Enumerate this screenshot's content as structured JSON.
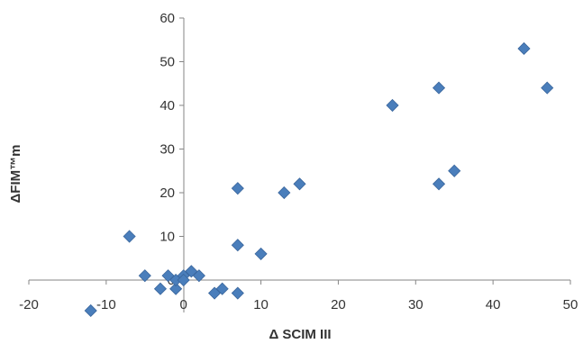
{
  "chart_data": {
    "type": "scatter",
    "title": "",
    "xlabel": "Δ SCIM III",
    "ylabel": "ΔFIM™m",
    "xlim": [
      -20,
      50
    ],
    "ylim": [
      -7,
      60
    ],
    "x_ticks": [
      "-20",
      "-10",
      "0",
      "10",
      "20",
      "30",
      "40",
      "50"
    ],
    "y_ticks": [
      "0",
      "10",
      "20",
      "30",
      "40",
      "50",
      "60"
    ],
    "grid": false,
    "legend": "none",
    "marker": "diamond",
    "marker_color": "#4a7ebb",
    "points": [
      {
        "x": -12,
        "y": -7
      },
      {
        "x": -7,
        "y": 10
      },
      {
        "x": -5,
        "y": 1
      },
      {
        "x": -3,
        "y": -2
      },
      {
        "x": -2,
        "y": 1
      },
      {
        "x": -1,
        "y": -2
      },
      {
        "x": -1,
        "y": 0
      },
      {
        "x": 0,
        "y": 1
      },
      {
        "x": 0,
        "y": 0
      },
      {
        "x": 1,
        "y": 2
      },
      {
        "x": 2,
        "y": 1
      },
      {
        "x": 4,
        "y": -3
      },
      {
        "x": 5,
        "y": -2
      },
      {
        "x": 7,
        "y": -3
      },
      {
        "x": 7,
        "y": 8
      },
      {
        "x": 7,
        "y": 21
      },
      {
        "x": 10,
        "y": 6
      },
      {
        "x": 13,
        "y": 20
      },
      {
        "x": 15,
        "y": 22
      },
      {
        "x": 27,
        "y": 40
      },
      {
        "x": 33,
        "y": 44
      },
      {
        "x": 33,
        "y": 22
      },
      {
        "x": 35,
        "y": 25
      },
      {
        "x": 44,
        "y": 53
      },
      {
        "x": 47,
        "y": 44
      }
    ]
  }
}
